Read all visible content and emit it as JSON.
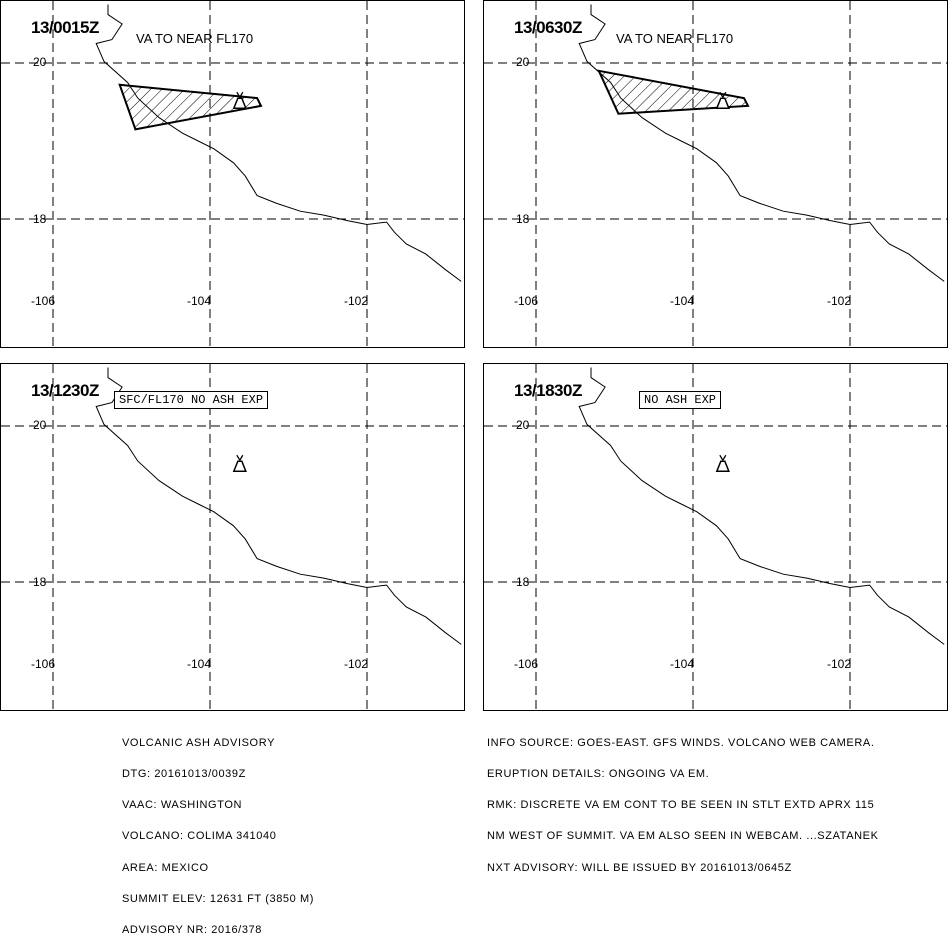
{
  "panels": [
    {
      "time": "13/0015Z",
      "note": "VA TO NEAR FL170",
      "note_boxed": false,
      "ash_cloud": [
        [
          -105.15,
          19.72
        ],
        [
          -103.4,
          19.55
        ],
        [
          -103.35,
          19.45
        ],
        [
          -104.95,
          19.15
        ]
      ]
    },
    {
      "time": "13/0630Z",
      "note": "VA TO NEAR FL170",
      "note_boxed": false,
      "ash_cloud": [
        [
          -105.2,
          19.9
        ],
        [
          -103.35,
          19.55
        ],
        [
          -103.3,
          19.45
        ],
        [
          -104.95,
          19.35
        ]
      ]
    },
    {
      "time": "13/1230Z",
      "note": "SFC/FL170 NO ASH EXP",
      "note_boxed": true,
      "ash_cloud": null
    },
    {
      "time": "13/1830Z",
      "note": "NO ASH EXP",
      "note_boxed": true,
      "ash_cloud": null
    }
  ],
  "map": {
    "lat_ticks": [
      "20",
      "18"
    ],
    "lon_ticks": [
      "-106",
      "-104",
      "-102"
    ],
    "volcano": {
      "name": "COLIMA",
      "lon": -103.62,
      "lat": 19.51
    },
    "coastline": [
      [
        -105.3,
        20.75
      ],
      [
        -105.3,
        20.62
      ],
      [
        -105.12,
        20.5
      ],
      [
        -105.25,
        20.3
      ],
      [
        -105.45,
        20.25
      ],
      [
        -105.35,
        20.02
      ],
      [
        -105.05,
        19.75
      ],
      [
        -104.92,
        19.55
      ],
      [
        -104.65,
        19.3
      ],
      [
        -104.35,
        19.1
      ],
      [
        -104.15,
        19.0
      ],
      [
        -103.95,
        18.9
      ],
      [
        -103.7,
        18.72
      ],
      [
        -103.55,
        18.55
      ],
      [
        -103.4,
        18.3
      ],
      [
        -103.15,
        18.2
      ],
      [
        -102.85,
        18.1
      ],
      [
        -102.55,
        18.05
      ],
      [
        -102.25,
        17.98
      ],
      [
        -102.0,
        17.93
      ],
      [
        -101.75,
        17.96
      ],
      [
        -101.65,
        17.83
      ],
      [
        -101.5,
        17.68
      ],
      [
        -101.25,
        17.55
      ],
      [
        -101.0,
        17.35
      ],
      [
        -100.8,
        17.2
      ]
    ],
    "colors": {
      "line": "#000000",
      "grid": "#000000",
      "background": "#ffffff"
    }
  },
  "advisory_left": [
    "VOLCANIC ASH ADVISORY",
    "DTG: 20161013/0039Z",
    "VAAC: WASHINGTON",
    "VOLCANO: COLIMA 341040",
    "AREA: MEXICO",
    "SUMMIT ELEV: 12631 FT (3850 M)",
    "ADVISORY NR: 2016/378"
  ],
  "advisory_right": [
    "INFO SOURCE: GOES-EAST. GFS WINDS. VOLCANO WEB CAMERA.",
    "ERUPTION DETAILS: ONGOING VA EM.",
    "RMK: DISCRETE VA EM CONT TO BE SEEN IN STLT EXTD APRX 115",
    "NM WEST OF SUMMIT. VA EM ALSO SEEN IN WEBCAM. ...SZATANEK",
    "NXT ADVISORY: WILL BE ISSUED BY 20161013/0645Z"
  ]
}
